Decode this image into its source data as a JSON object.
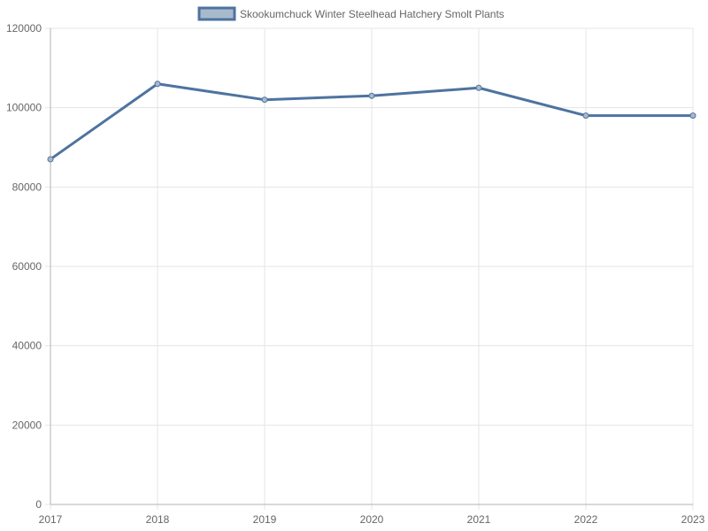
{
  "chart_data": {
    "type": "line",
    "categories": [
      "2017",
      "2018",
      "2019",
      "2020",
      "2021",
      "2022",
      "2023"
    ],
    "series": [
      {
        "name": "Skookumchuck Winter Steelhead Hatchery Smolt Plants",
        "values": [
          87000,
          106000,
          102000,
          103000,
          105000,
          98000,
          98000
        ]
      }
    ],
    "ylim": [
      0,
      120000
    ],
    "yticks": [
      "0",
      "20000",
      "40000",
      "60000",
      "80000",
      "100000",
      "120000"
    ],
    "grid": true,
    "legend_position": "top-center",
    "colors": {
      "line": "#4e73a0",
      "fill": "#a9b9cc",
      "grid": "#e5e5e5",
      "axis": "#b3b3b3",
      "text": "#666666"
    }
  }
}
